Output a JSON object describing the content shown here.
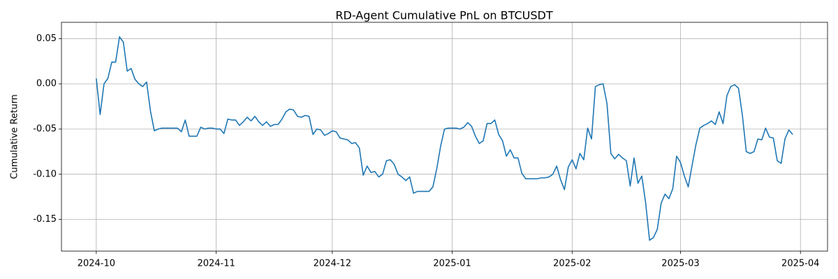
{
  "chart_data": {
    "type": "line",
    "title": "RD-Agent Cumulative PnL on BTCUSDT",
    "ylabel": "Cumulative Return",
    "categories": [
      "2024-10",
      null,
      null,
      null,
      null,
      null,
      null,
      null,
      null,
      null,
      null,
      null,
      null,
      null,
      null,
      null,
      null,
      null,
      null,
      null,
      null,
      null,
      null,
      null,
      null,
      null,
      null,
      null,
      null,
      null,
      null,
      "2024-11",
      null,
      null,
      null,
      null,
      null,
      null,
      null,
      null,
      null,
      null,
      null,
      null,
      null,
      null,
      null,
      null,
      null,
      null,
      null,
      null,
      null,
      null,
      null,
      null,
      null,
      null,
      null,
      null,
      null,
      "2024-12",
      null,
      null,
      null,
      null,
      null,
      null,
      null,
      null,
      null,
      null,
      null,
      null,
      null,
      null,
      null,
      null,
      null,
      null,
      null,
      null,
      null,
      null,
      null,
      null,
      null,
      null,
      null,
      null,
      null,
      null,
      "2025-01",
      null,
      null,
      null,
      null,
      null,
      null,
      null,
      null,
      null,
      null,
      null,
      null,
      null,
      null,
      null,
      null,
      null,
      null,
      null,
      null,
      null,
      null,
      null,
      null,
      null,
      null,
      null,
      null,
      null,
      null,
      "2025-02",
      null,
      null,
      null,
      null,
      null,
      null,
      null,
      null,
      null,
      null,
      null,
      null,
      null,
      null,
      null,
      null,
      null,
      null,
      null,
      null,
      null,
      null,
      null,
      null,
      null,
      null,
      null,
      "2025-03",
      null,
      null,
      null,
      null,
      null,
      null,
      null,
      null,
      null,
      null,
      null,
      null,
      null,
      null,
      null,
      null,
      null,
      null,
      null,
      null,
      null,
      null,
      null,
      null,
      null,
      null,
      null,
      null,
      null,
      null,
      "2025-04"
    ],
    "series": [
      {
        "name": "Cumulative Return",
        "color": "#1f77b4",
        "values": [
          0.006,
          -0.034,
          0.0,
          0.006,
          0.024,
          0.024,
          0.052,
          0.046,
          0.014,
          0.017,
          0.005,
          0.0,
          -0.003,
          0.002,
          -0.03,
          -0.052,
          -0.05,
          -0.049,
          -0.049,
          -0.049,
          -0.049,
          -0.049,
          -0.053,
          -0.04,
          -0.058,
          -0.058,
          -0.058,
          -0.048,
          -0.05,
          -0.049,
          -0.049,
          -0.05,
          -0.05,
          -0.055,
          -0.039,
          -0.04,
          -0.04,
          -0.046,
          -0.042,
          -0.037,
          -0.041,
          -0.036,
          -0.042,
          -0.046,
          -0.042,
          -0.047,
          -0.045,
          -0.045,
          -0.039,
          -0.031,
          -0.028,
          -0.029,
          -0.036,
          -0.037,
          -0.035,
          -0.036,
          -0.056,
          -0.05,
          -0.051,
          -0.057,
          -0.055,
          -0.052,
          -0.053,
          -0.06,
          -0.061,
          -0.062,
          -0.066,
          -0.065,
          -0.071,
          -0.101,
          -0.091,
          -0.098,
          -0.097,
          -0.103,
          -0.1,
          -0.085,
          -0.084,
          -0.089,
          -0.1,
          -0.103,
          -0.107,
          -0.103,
          -0.121,
          -0.119,
          -0.119,
          -0.119,
          -0.119,
          -0.114,
          -0.094,
          -0.069,
          -0.05,
          -0.049,
          -0.049,
          -0.049,
          -0.05,
          -0.048,
          -0.043,
          -0.047,
          -0.058,
          -0.066,
          -0.063,
          -0.044,
          -0.044,
          -0.04,
          -0.056,
          -0.063,
          -0.08,
          -0.073,
          -0.082,
          -0.082,
          -0.099,
          -0.105,
          -0.105,
          -0.105,
          -0.105,
          -0.104,
          -0.104,
          -0.103,
          -0.1,
          -0.091,
          -0.106,
          -0.117,
          -0.092,
          -0.084,
          -0.094,
          -0.077,
          -0.084,
          -0.049,
          -0.061,
          -0.003,
          -0.001,
          0.0,
          -0.022,
          -0.077,
          -0.083,
          -0.078,
          -0.082,
          -0.085,
          -0.113,
          -0.082,
          -0.11,
          -0.102,
          -0.132,
          -0.173,
          -0.17,
          -0.161,
          -0.132,
          -0.122,
          -0.127,
          -0.116,
          -0.08,
          -0.087,
          -0.102,
          -0.114,
          -0.09,
          -0.067,
          -0.049,
          -0.046,
          -0.044,
          -0.041,
          -0.045,
          -0.031,
          -0.044,
          -0.013,
          -0.003,
          -0.001,
          -0.005,
          -0.035,
          -0.075,
          -0.077,
          -0.075,
          -0.061,
          -0.062,
          -0.049,
          -0.059,
          -0.06,
          -0.085,
          -0.088,
          -0.061,
          -0.051,
          -0.056,
          null,
          null
        ]
      }
    ],
    "ylim": [
      -0.185,
      0.068
    ],
    "yticks": [
      -0.15,
      {
        "value": -0.1,
        "label": "-0.10"
      },
      -0.05,
      {
        "value": 0,
        "label": "0.00"
      },
      0.05
    ],
    "grid": true
  }
}
